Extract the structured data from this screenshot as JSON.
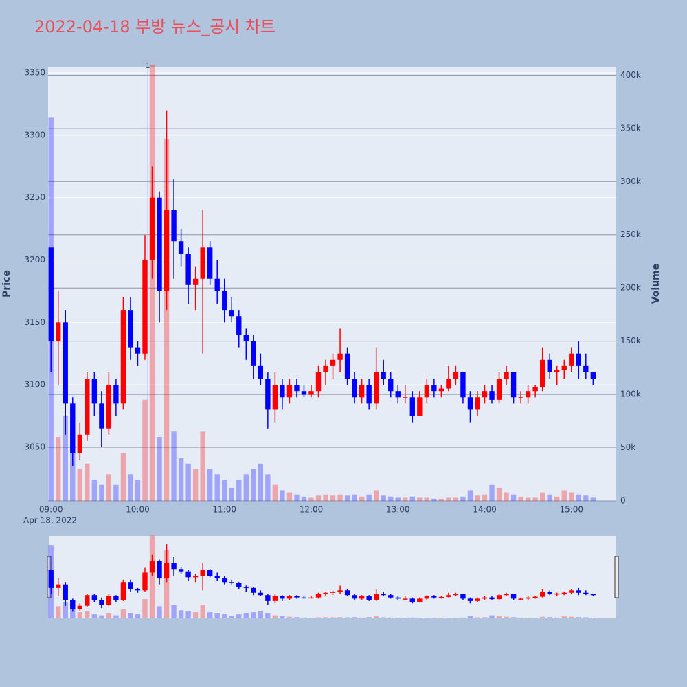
{
  "chart_data": {
    "type": "candlestick",
    "title": "2022-04-18 부방 뉴스_공시 차트",
    "y_axis_title": "Price",
    "y2_axis_title": "Volume",
    "x_axis_date": "Apr 18, 2022",
    "up_color": "#ff0000",
    "down_color": "#0000ff",
    "grid": true,
    "xlim": [
      "08:58",
      "15:31"
    ],
    "xticks": [
      "09:00",
      "10:00",
      "11:00",
      "12:00",
      "13:00",
      "14:00",
      "15:00"
    ],
    "ylim": [
      3007,
      3355
    ],
    "yticks": [
      3050,
      3100,
      3150,
      3200,
      3250,
      3300,
      3350
    ],
    "y2lim": [
      0,
      408000
    ],
    "y2ticks": [
      0,
      {
        "value": 50000,
        "label": "50k"
      },
      {
        "value": 100000,
        "label": "100k"
      },
      {
        "value": 150000,
        "label": "150k"
      },
      {
        "value": 200000,
        "label": "200k"
      },
      {
        "value": 250000,
        "label": "250k"
      },
      {
        "value": 300000,
        "label": "300k"
      },
      {
        "value": 350000,
        "label": "350k"
      },
      {
        "value": 400000,
        "label": "400k"
      }
    ],
    "annotations": [
      {
        "x": "10:07",
        "text": "1"
      }
    ],
    "x": [
      "09:00",
      "09:05",
      "09:10",
      "09:15",
      "09:20",
      "09:25",
      "09:30",
      "09:35",
      "09:40",
      "09:45",
      "09:50",
      "09:55",
      "10:00",
      "10:05",
      "10:10",
      "10:15",
      "10:20",
      "10:25",
      "10:30",
      "10:35",
      "10:40",
      "10:45",
      "10:50",
      "10:55",
      "11:00",
      "11:05",
      "11:10",
      "11:15",
      "11:20",
      "11:25",
      "11:30",
      "11:35",
      "11:40",
      "11:45",
      "11:50",
      "11:55",
      "12:00",
      "12:05",
      "12:10",
      "12:15",
      "12:20",
      "12:25",
      "12:30",
      "12:35",
      "12:40",
      "12:45",
      "12:50",
      "12:55",
      "13:00",
      "13:05",
      "13:10",
      "13:15",
      "13:20",
      "13:25",
      "13:30",
      "13:35",
      "13:40",
      "13:45",
      "13:50",
      "13:55",
      "14:00",
      "14:05",
      "14:10",
      "14:15",
      "14:20",
      "14:25",
      "14:30",
      "14:35",
      "14:40",
      "14:45",
      "14:50",
      "14:55",
      "15:00",
      "15:05",
      "15:10",
      "15:15"
    ],
    "open": [
      3210,
      3135,
      3150,
      3085,
      3045,
      3060,
      3105,
      3085,
      3065,
      3100,
      3085,
      3160,
      3130,
      3125,
      3200,
      3250,
      3175,
      3240,
      3215,
      3205,
      3180,
      3185,
      3210,
      3185,
      3175,
      3160,
      3155,
      3140,
      3135,
      3115,
      3105,
      3080,
      3100,
      3090,
      3100,
      3095,
      3092,
      3095,
      3110,
      3115,
      3120,
      3125,
      3105,
      3090,
      3100,
      3085,
      3110,
      3105,
      3095,
      3090,
      3090,
      3075,
      3090,
      3100,
      3095,
      3097,
      3105,
      3110,
      3090,
      3080,
      3090,
      3095,
      3088,
      3105,
      3110,
      3090,
      3090,
      3095,
      3098,
      3120,
      3110,
      3112,
      3115,
      3125,
      3115,
      3110
    ],
    "high": [
      3210,
      3175,
      3160,
      3090,
      3070,
      3110,
      3110,
      3095,
      3110,
      3105,
      3170,
      3170,
      3135,
      3220,
      3275,
      3255,
      3320,
      3265,
      3225,
      3210,
      3195,
      3240,
      3215,
      3200,
      3185,
      3170,
      3160,
      3145,
      3140,
      3125,
      3110,
      3110,
      3105,
      3105,
      3105,
      3100,
      3100,
      3115,
      3120,
      3125,
      3145,
      3130,
      3110,
      3105,
      3105,
      3130,
      3120,
      3110,
      3100,
      3100,
      3095,
      3095,
      3105,
      3105,
      3100,
      3115,
      3115,
      3110,
      3095,
      3095,
      3100,
      3100,
      3110,
      3115,
      3110,
      3095,
      3100,
      3100,
      3130,
      3125,
      3115,
      3120,
      3130,
      3135,
      3125,
      3110
    ],
    "low": [
      3110,
      3100,
      3060,
      3035,
      3040,
      3055,
      3075,
      3050,
      3060,
      3075,
      3080,
      3120,
      3115,
      3120,
      3185,
      3150,
      3160,
      3185,
      3195,
      3165,
      3160,
      3125,
      3180,
      3165,
      3150,
      3150,
      3130,
      3120,
      3105,
      3100,
      3065,
      3070,
      3080,
      3085,
      3090,
      3090,
      3090,
      3090,
      3100,
      3105,
      3110,
      3100,
      3085,
      3085,
      3080,
      3080,
      3100,
      3090,
      3085,
      3085,
      3070,
      3075,
      3085,
      3090,
      3090,
      3095,
      3100,
      3085,
      3070,
      3075,
      3085,
      3085,
      3085,
      3100,
      3085,
      3085,
      3085,
      3090,
      3095,
      3105,
      3100,
      3105,
      3110,
      3105,
      3105,
      3100
    ],
    "close": [
      3135,
      3150,
      3085,
      3045,
      3060,
      3105,
      3085,
      3065,
      3100,
      3085,
      3160,
      3130,
      3125,
      3200,
      3250,
      3175,
      3240,
      3215,
      3205,
      3180,
      3185,
      3210,
      3185,
      3175,
      3160,
      3155,
      3140,
      3135,
      3115,
      3105,
      3080,
      3100,
      3090,
      3100,
      3095,
      3092,
      3095,
      3110,
      3115,
      3120,
      3125,
      3105,
      3090,
      3100,
      3085,
      3110,
      3105,
      3095,
      3090,
      3090,
      3075,
      3090,
      3100,
      3095,
      3097,
      3105,
      3110,
      3090,
      3080,
      3090,
      3095,
      3088,
      3105,
      3110,
      3090,
      3090,
      3095,
      3098,
      3120,
      3110,
      3112,
      3115,
      3125,
      3115,
      3110,
      3105
    ],
    "volume": [
      360000,
      60000,
      80000,
      45000,
      30000,
      35000,
      20000,
      15000,
      25000,
      15000,
      45000,
      25000,
      20000,
      95000,
      410000,
      60000,
      340000,
      65000,
      40000,
      35000,
      30000,
      65000,
      30000,
      25000,
      20000,
      12000,
      20000,
      25000,
      30000,
      35000,
      25000,
      15000,
      10000,
      8000,
      6000,
      4000,
      3000,
      5000,
      6000,
      5000,
      6000,
      5000,
      6000,
      4000,
      6000,
      10000,
      5000,
      4000,
      3000,
      3000,
      4000,
      3000,
      3000,
      2000,
      2000,
      3000,
      3000,
      4000,
      10000,
      5000,
      6000,
      15000,
      12000,
      8000,
      6000,
      4000,
      3000,
      3000,
      8000,
      6000,
      4000,
      10000,
      8000,
      6000,
      5000,
      3000
    ]
  }
}
